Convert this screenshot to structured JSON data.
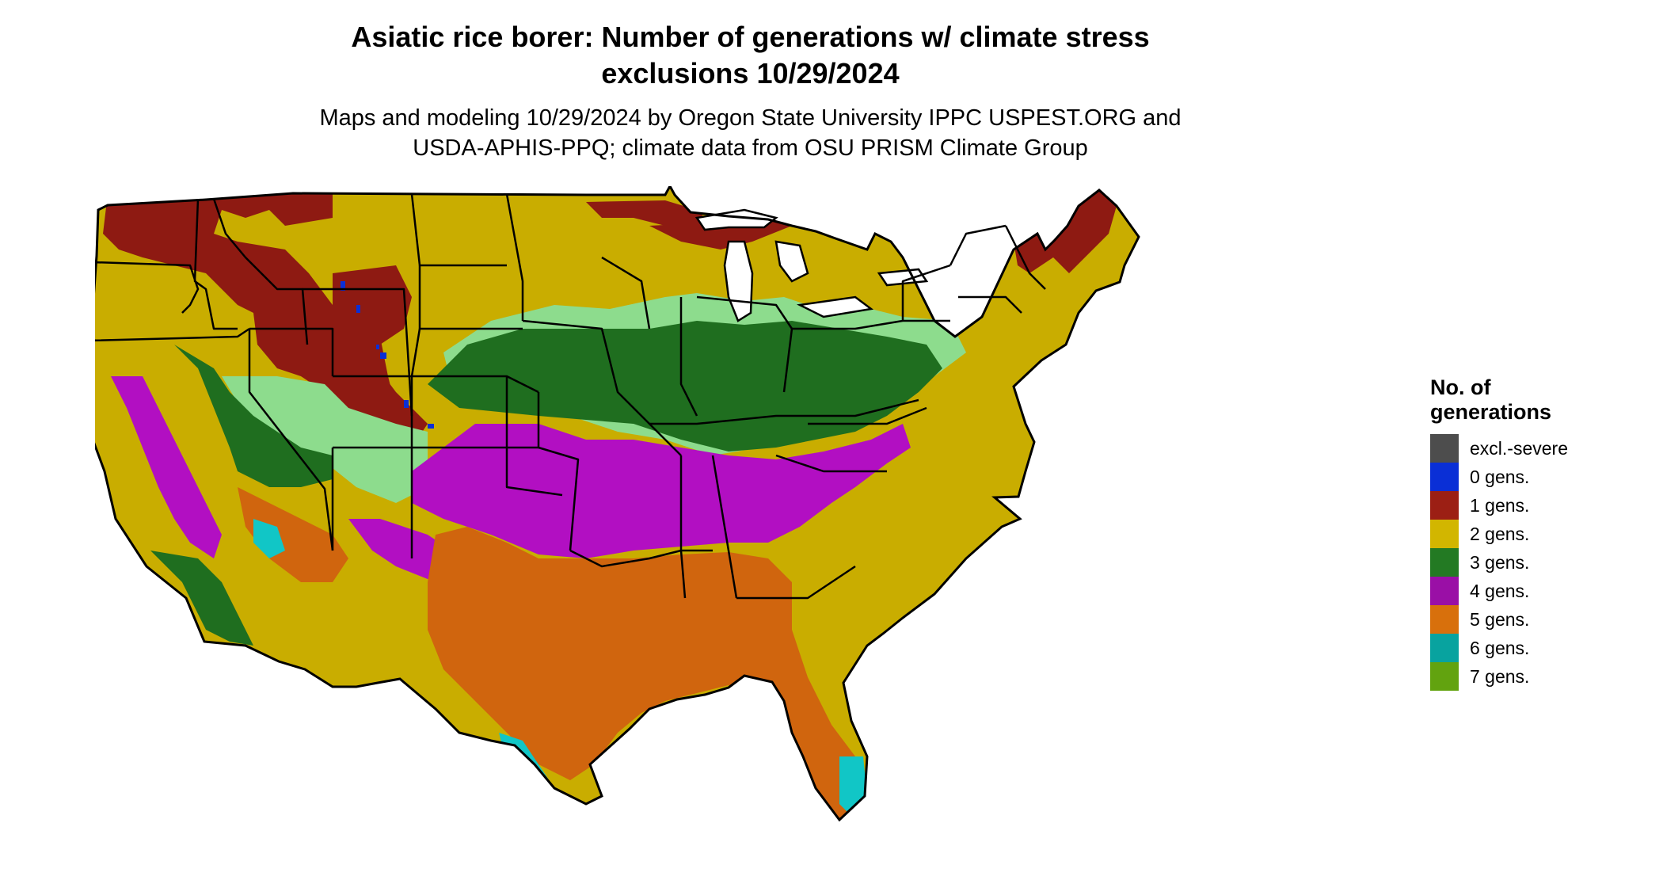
{
  "title": {
    "line1": "Asiatic rice borer: Number of generations w/ climate stress",
    "line2": "exclusions 10/29/2024"
  },
  "subtitle": {
    "line1": "Maps and modeling 10/29/2024 by Oregon State University IPPC USPEST.ORG and",
    "line2": "USDA-APHIS-PPQ; climate data from OSU PRISM Climate Group"
  },
  "legend": {
    "title_line1": "No. of",
    "title_line2": "generations",
    "items": [
      {
        "label": "excl.-severe",
        "color": "#4d4d4d"
      },
      {
        "label": "0 gens.",
        "color": "#0a2fd6"
      },
      {
        "label": "1 gens.",
        "color": "#9c1f14"
      },
      {
        "label": "2 gens.",
        "color": "#d2b600"
      },
      {
        "label": "3 gens.",
        "color": "#237a23"
      },
      {
        "label": "4 gens.",
        "color": "#9a0fa6"
      },
      {
        "label": "5 gens.",
        "color": "#d8700c"
      },
      {
        "label": "6 gens.",
        "color": "#08a39f"
      },
      {
        "label": "7 gens.",
        "color": "#62a30f"
      }
    ]
  },
  "map": {
    "region": "contiguous United States",
    "colors": {
      "one_gen": "#8e1a12",
      "two_gen": "#c9ad00",
      "transition": "#8ddc8d",
      "three_gen": "#1f6e1f",
      "four_gen": "#b20fc2",
      "five_gen": "#d0650e",
      "six_gen": "#11c6c6",
      "zero_gen": "#0a2fd6",
      "border": "#000000",
      "water": "#ffffff"
    }
  }
}
